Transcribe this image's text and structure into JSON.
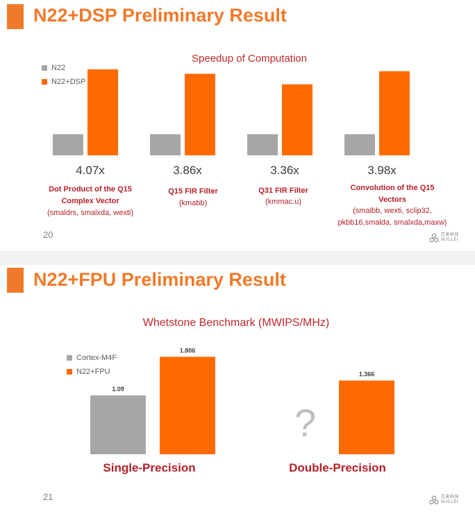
{
  "slide1": {
    "title": "N22+DSP Preliminary Result",
    "page_number": "20",
    "speedups": [
      "4.07x",
      "3.86x",
      "3.36x",
      "3.98x"
    ],
    "labels": [
      {
        "name": "Dot Product of the Q15 Complex Vector",
        "line1": "Dot Product of the Q15",
        "line2": "Complex Vector",
        "detail": "(smaldrs, smalxda, wexti)"
      },
      {
        "name": "Q15 FIR Filter",
        "line1": "Q15 FIR Filter",
        "line2": "",
        "detail": "(kmabb)"
      },
      {
        "name": "Q31 FIR Filter",
        "line1": "Q31 FIR Filter",
        "line2": "",
        "detail": "(kmmac.u)"
      },
      {
        "name": "Convolution of the Q15 Vectors",
        "line1": "Convolution of the Q15",
        "line2": "Vectors",
        "detail1": "(smalbb, wexti, sclip32,",
        "detail2": "pkbb16,smalda, smalxda,maxw)"
      }
    ],
    "logo": {
      "cn": "芯来科技",
      "en": "NUCLEI"
    },
    "colors": {
      "accent": "#f07a2a",
      "bar_orange": "#ff6a00",
      "bar_gray": "#a6a6a6",
      "label_red": "#b4202a"
    }
  },
  "slide2": {
    "title": "N22+FPU Preliminary Result",
    "page_number": "21",
    "question_mark": "?",
    "logo": {
      "cn": "芯来科技",
      "en": "NUCLEI"
    }
  },
  "chart_data": [
    {
      "type": "bar",
      "title": "Speedup of Computation",
      "categories": [
        "Dot Product of the Q15 Complex Vector",
        "Q15 FIR Filter",
        "Q31 FIR Filter",
        "Convolution of the Q15 Vectors"
      ],
      "series": [
        {
          "name": "N22",
          "values": [
            1,
            1,
            1,
            1
          ],
          "color": "#a6a6a6"
        },
        {
          "name": "N22+DSP",
          "values": [
            4.07,
            3.86,
            3.36,
            3.98
          ],
          "color": "#ff6a00"
        }
      ],
      "ylim": [
        0,
        4.2
      ],
      "legend": "top-left",
      "grid": false
    },
    {
      "type": "bar",
      "title": "Whetstone Benchmark (MWIPS/MHz)",
      "categories": [
        "Single-Precision",
        "Double-Precision"
      ],
      "series": [
        {
          "name": "Cortex-M4F",
          "values": [
            1.09,
            null
          ],
          "labels": [
            "1.09",
            ""
          ],
          "color": "#a6a6a6"
        },
        {
          "name": "N22+FPU",
          "values": [
            1.806,
            1.366
          ],
          "labels": [
            "1.806",
            "1.366"
          ],
          "color": "#ff6a00"
        }
      ],
      "ylim": [
        0,
        1.85
      ],
      "legend": "top-left",
      "grid": false
    }
  ]
}
